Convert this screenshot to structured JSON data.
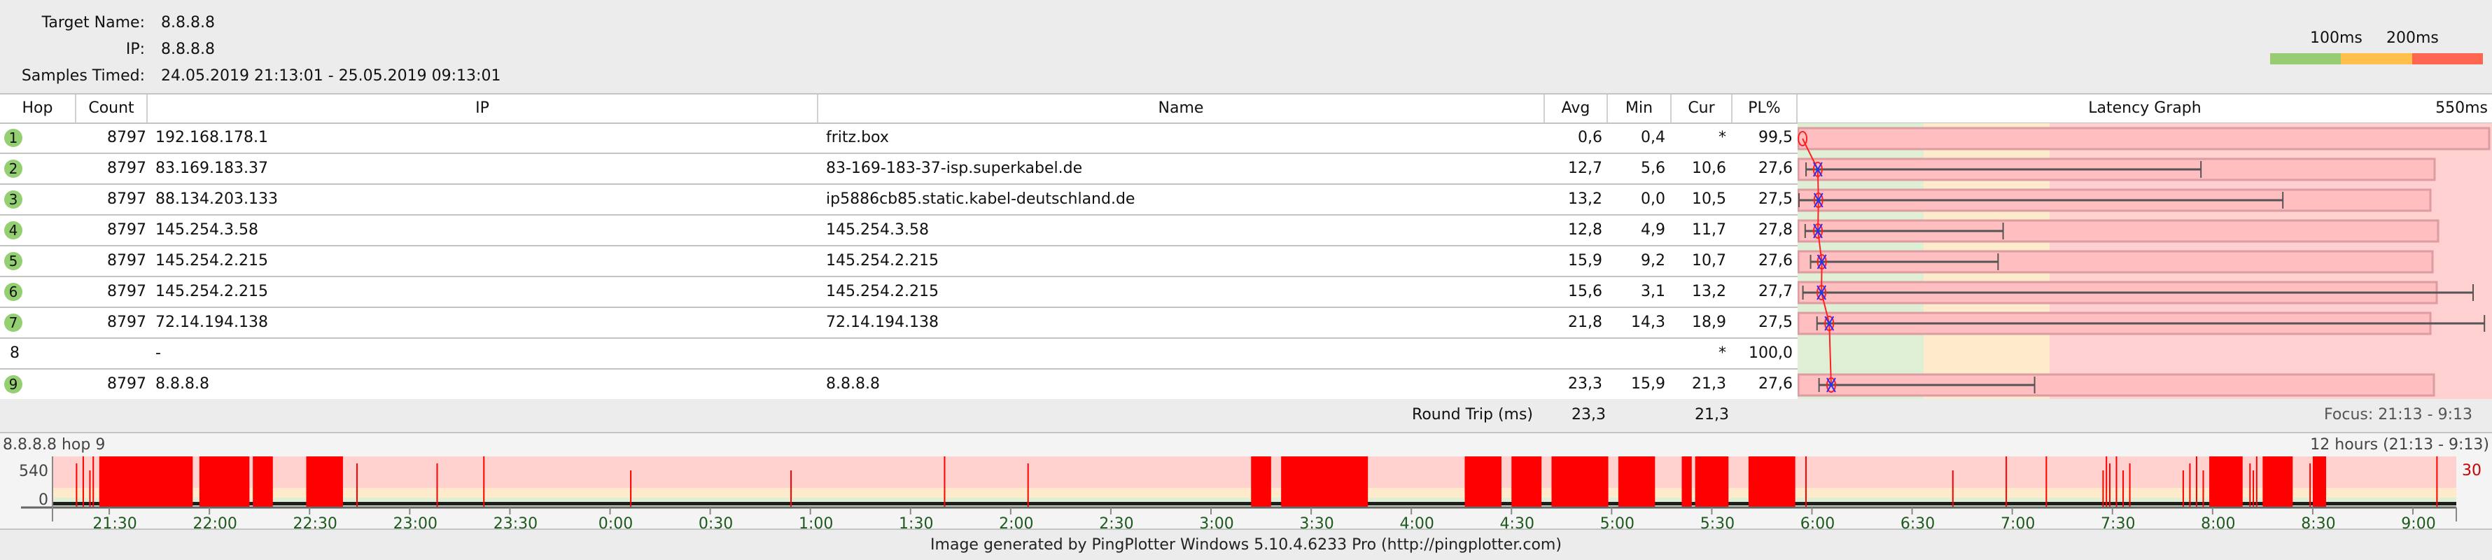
{
  "header": {
    "target_name_label": "Target Name:",
    "target_name": "8.8.8.8",
    "ip_label": "IP:",
    "ip": "8.8.8.8",
    "samples_label": "Samples Timed:",
    "samples": "24.05.2019 21:13:01 - 25.05.2019 09:13:01",
    "legend": {
      "label_100": "100ms",
      "label_200": "200ms",
      "colors": {
        "good": "#99cc70",
        "warn": "#ffc04c",
        "bad": "#ff6650"
      }
    }
  },
  "columns": [
    "Hop",
    "Count",
    "IP",
    "Name",
    "Avg",
    "Min",
    "Cur",
    "PL%",
    "Latency Graph",
    "550ms"
  ],
  "latency_graph": {
    "scale_max_ms": 550,
    "thresholds_ms": [
      100,
      200
    ]
  },
  "rows": [
    {
      "hop": "1",
      "count": "8797",
      "ip": "192.168.178.1",
      "name": "fritz.box",
      "avg": "0,6",
      "min": "0,4",
      "cur": "*",
      "pl": "99,5",
      "max_ms": 1
    },
    {
      "hop": "2",
      "count": "8797",
      "ip": "83.169.183.37",
      "name": "83-169-183-37-isp.superkabel.de",
      "avg": "12,7",
      "min": "5,6",
      "cur": "10,6",
      "pl": "27,6",
      "max_ms": 319
    },
    {
      "hop": "3",
      "count": "8797",
      "ip": "88.134.203.133",
      "name": "ip5886cb85.static.kabel-deutschland.de",
      "avg": "13,2",
      "min": "0,0",
      "cur": "10,5",
      "pl": "27,5",
      "max_ms": 384
    },
    {
      "hop": "4",
      "count": "8797",
      "ip": "145.254.3.58",
      "name": "145.254.3.58",
      "avg": "12,8",
      "min": "4,9",
      "cur": "11,7",
      "pl": "27,8",
      "max_ms": 162
    },
    {
      "hop": "5",
      "count": "8797",
      "ip": "145.254.2.215",
      "name": "145.254.2.215",
      "avg": "15,9",
      "min": "9,2",
      "cur": "10,7",
      "pl": "27,6",
      "max_ms": 158
    },
    {
      "hop": "6",
      "count": "8797",
      "ip": "145.254.2.215",
      "name": "145.254.2.215",
      "avg": "15,6",
      "min": "3,1",
      "cur": "13,2",
      "pl": "27,7",
      "max_ms": 535
    },
    {
      "hop": "7",
      "count": "8797",
      "ip": "72.14.194.138",
      "name": "72.14.194.138",
      "avg": "21,8",
      "min": "14,3",
      "cur": "18,9",
      "pl": "27,5",
      "max_ms": 544
    },
    {
      "hop": "8",
      "count": "",
      "ip": "-",
      "name": "",
      "avg": "",
      "min": "",
      "cur": "*",
      "pl": "100,0",
      "max_ms": null
    },
    {
      "hop": "9",
      "count": "8797",
      "ip": "8.8.8.8",
      "name": "8.8.8.8",
      "avg": "23,3",
      "min": "15,9",
      "cur": "21,3",
      "pl": "27,6",
      "max_ms": 187
    }
  ],
  "round_trip": {
    "label": "Round Trip (ms)",
    "avg": "23,3",
    "cur": "21,3",
    "focus": "Focus: 21:13 - 9:13"
  },
  "timeline": {
    "title": "8.8.8.8 hop 9",
    "range_label": "12 hours (21:13 - 9:13)",
    "y_ticks": [
      "540",
      "0"
    ],
    "right_value": "30",
    "start": "21:13",
    "end": "9:13",
    "x_ticks": [
      "21:30",
      "22:00",
      "22:30",
      "23:00",
      "23:30",
      "0:00",
      "0:30",
      "1:00",
      "1:30",
      "2:00",
      "2:30",
      "3:00",
      "3:30",
      "4:00",
      "4:30",
      "5:00",
      "5:30",
      "6:00",
      "6:30",
      "7:00",
      "7:30",
      "8:00",
      "8:30",
      "9:00"
    ],
    "packet_loss_blocks": [
      [
        "21:27",
        "21:55"
      ],
      [
        "21:57",
        "22:12"
      ],
      [
        "22:13",
        "22:19"
      ],
      [
        "22:29",
        "22:40"
      ],
      [
        "3:12",
        "3:18"
      ],
      [
        "3:21",
        "3:47"
      ],
      [
        "4:16",
        "4:27"
      ],
      [
        "4:30",
        "4:39"
      ],
      [
        "4:42",
        "4:59"
      ],
      [
        "5:02",
        "5:13"
      ],
      [
        "5:21",
        "5:24"
      ],
      [
        "5:25",
        "5:35"
      ],
      [
        "5:41",
        "5:55"
      ],
      [
        "7:59",
        "8:09"
      ],
      [
        "8:15",
        "8:24"
      ],
      [
        "8:30",
        "8:34"
      ]
    ],
    "packet_loss_spikes": [
      "21:20",
      "21:22",
      "21:24",
      "21:25",
      "22:44",
      "23:08",
      "23:22",
      "0:06",
      "0:54",
      "1:40",
      "2:05",
      "5:58",
      "6:42",
      "6:58",
      "7:10",
      "7:27",
      "7:28",
      "7:29",
      "7:31",
      "7:33",
      "7:35",
      "7:51",
      "7:53",
      "7:55",
      "7:57",
      "8:11",
      "8:12",
      "8:13",
      "8:29",
      "9:07"
    ]
  },
  "footer": "Image generated by PingPlotter Windows 5.10.4.6233 Pro (http://pingplotter.com)"
}
